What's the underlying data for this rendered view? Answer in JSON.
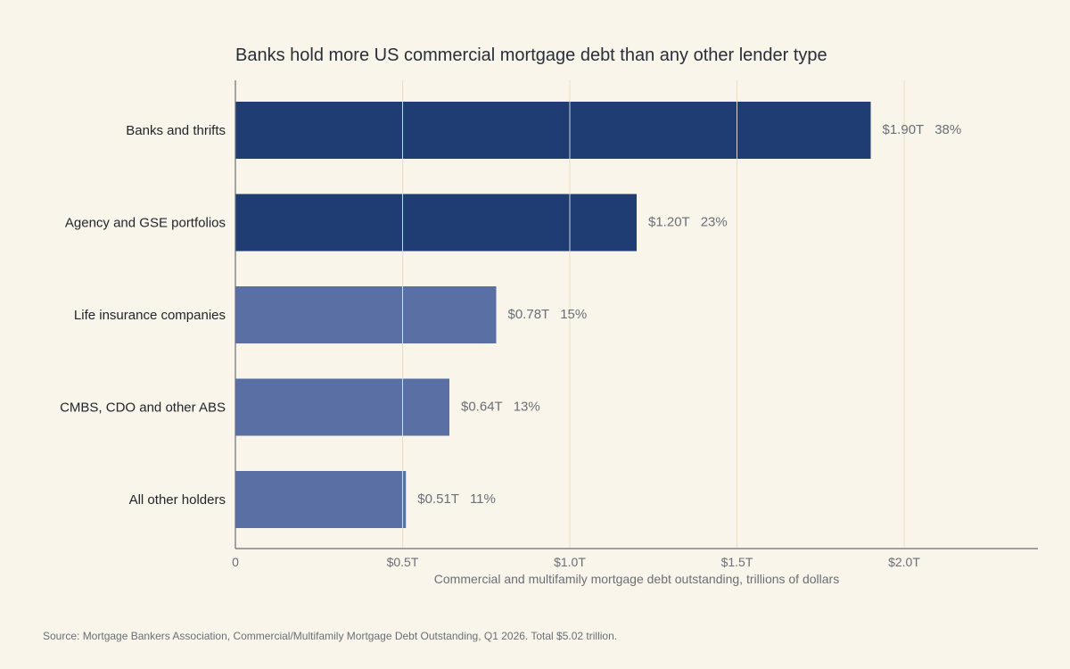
{
  "chart_data": {
    "type": "bar",
    "orientation": "horizontal",
    "title": "Banks hold more US commercial mortgage debt than any other lender type",
    "xlabel": "Commercial and multifamily mortgage debt outstanding, trillions of dollars",
    "ylabel": "",
    "xlim": [
      0,
      2.4
    ],
    "xticks": [
      0,
      0.5,
      1.0,
      1.5,
      2.0
    ],
    "xtick_labels": [
      "0",
      "$0.5T",
      "$1.0T",
      "$1.5T",
      "$2.0T"
    ],
    "grid": true,
    "categories": [
      "Banks and thrifts",
      "Agency and GSE portfolios",
      "Life insurance companies",
      "CMBS, CDO and other ABS",
      "All other holders"
    ],
    "values": [
      1.9,
      1.2,
      0.78,
      0.64,
      0.51
    ],
    "value_labels": [
      "$1.90T",
      "$1.20T",
      "$0.78T",
      "$0.64T",
      "$0.51T"
    ],
    "share_labels": [
      "38%",
      "23%",
      "15%",
      "13%",
      "11%"
    ],
    "colors": [
      "#1f3c73",
      "#1f3c73",
      "#5a6fa3",
      "#5a6fa3",
      "#5a6fa3"
    ],
    "source": "Source: Mortgage Bankers Association, Commercial/Multifamily Mortgage Debt Outstanding, Q1 2026. Total $5.02 trillion."
  },
  "style": {
    "background": "#f9f5ea",
    "gridline_color": "#e6dfc4",
    "axis_color": "#6b6e76"
  }
}
